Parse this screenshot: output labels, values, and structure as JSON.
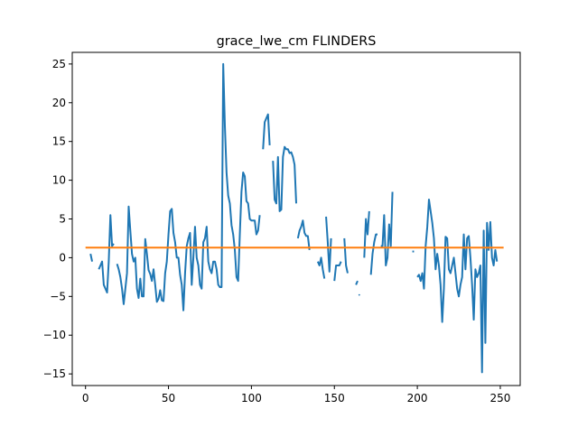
{
  "chart_data": {
    "type": "line",
    "title": "grace_lwe_cm FLINDERS",
    "xlabel": "",
    "ylabel": "",
    "xlim": [
      -8,
      262
    ],
    "ylim": [
      -16.5,
      26.5
    ],
    "x_ticks": [
      0,
      50,
      100,
      150,
      200,
      250
    ],
    "y_ticks": [
      -15,
      -10,
      -5,
      0,
      5,
      10,
      15,
      20,
      25
    ],
    "grid": false,
    "legend": "none",
    "series": [
      {
        "color": "#1f77b4",
        "segments": [
          [
            [
              3,
              0.5
            ],
            [
              4,
              -0.5
            ]
          ],
          [
            [
              8,
              -1.5
            ],
            [
              9,
              -1
            ],
            [
              10,
              -0.5
            ],
            [
              11,
              -3.5
            ],
            [
              12,
              -4
            ],
            [
              13,
              -4.5
            ],
            [
              14,
              -0.5
            ],
            [
              15,
              5.5
            ],
            [
              16,
              1.5
            ],
            [
              17,
              1.8
            ]
          ],
          [
            [
              19,
              -0.8
            ],
            [
              20,
              -1.5
            ],
            [
              21,
              -2.5
            ],
            [
              22,
              -4
            ],
            [
              23,
              -6
            ],
            [
              24,
              -4
            ],
            [
              25,
              -2
            ],
            [
              26,
              6.6
            ],
            [
              27,
              3.5
            ],
            [
              28,
              0.5
            ],
            [
              29,
              -0.5
            ],
            [
              30,
              0
            ],
            [
              31,
              -4
            ],
            [
              32,
              -5.2
            ],
            [
              33,
              -2.7
            ],
            [
              34,
              -5
            ],
            [
              35,
              -5
            ],
            [
              36,
              2.4
            ],
            [
              37,
              0.5
            ],
            [
              38,
              -1.6
            ],
            [
              39,
              -2.1
            ],
            [
              40,
              -3
            ],
            [
              41,
              -1.5
            ],
            [
              42,
              -3.5
            ],
            [
              43,
              -5.7
            ],
            [
              44,
              -5.3
            ],
            [
              45,
              -4.2
            ],
            [
              46,
              -5.5
            ],
            [
              47,
              -5.6
            ],
            [
              48,
              -2
            ],
            [
              49,
              -0.5
            ],
            [
              50,
              3
            ],
            [
              51,
              6
            ],
            [
              52,
              6.3
            ],
            [
              53,
              3.2
            ],
            [
              54,
              2
            ],
            [
              55,
              0
            ],
            [
              56,
              0
            ],
            [
              57,
              -2.2
            ],
            [
              58,
              -3.5
            ],
            [
              59,
              -6.8
            ],
            [
              60,
              -2
            ],
            [
              61,
              1.5
            ],
            [
              62,
              2.5
            ],
            [
              63,
              3.2
            ],
            [
              64,
              -3.5
            ],
            [
              65,
              0
            ],
            [
              66,
              4
            ],
            [
              67,
              0
            ],
            [
              68,
              -1
            ],
            [
              69,
              -3.5
            ],
            [
              70,
              -4
            ],
            [
              71,
              2
            ],
            [
              72,
              2.5
            ],
            [
              73,
              4
            ],
            [
              74,
              -0.5
            ],
            [
              75,
              -1.5
            ],
            [
              76,
              -2
            ],
            [
              77,
              -0.5
            ],
            [
              78,
              -0.5
            ],
            [
              79,
              -1.5
            ],
            [
              80,
              -3.5
            ],
            [
              81,
              -3.8
            ],
            [
              82,
              -3.8
            ],
            [
              83,
              25
            ],
            [
              84,
              17
            ],
            [
              85,
              11
            ],
            [
              86,
              8
            ],
            [
              87,
              7
            ],
            [
              88,
              4.2
            ],
            [
              89,
              3
            ],
            [
              90,
              1
            ],
            [
              91,
              -2.5
            ],
            [
              92,
              -3
            ],
            [
              93,
              3
            ],
            [
              94,
              8.5
            ],
            [
              95,
              11
            ],
            [
              96,
              10.5
            ],
            [
              97,
              7.3
            ],
            [
              98,
              7
            ],
            [
              99,
              5
            ],
            [
              100,
              4.8
            ],
            [
              101,
              4.8
            ],
            [
              102,
              4.8
            ],
            [
              103,
              3
            ],
            [
              104,
              3.5
            ],
            [
              105,
              5.5
            ]
          ],
          [
            [
              107,
              14
            ],
            [
              108,
              17.5
            ],
            [
              109,
              18
            ],
            [
              110,
              18.5
            ],
            [
              111,
              14.5
            ]
          ],
          [
            [
              113,
              12.5
            ],
            [
              114,
              7.5
            ],
            [
              115,
              7
            ],
            [
              116,
              13
            ],
            [
              117,
              6
            ],
            [
              118,
              6.2
            ],
            [
              119,
              13
            ],
            [
              120,
              14.3
            ],
            [
              121,
              14
            ],
            [
              122,
              14
            ],
            [
              123,
              13.5
            ],
            [
              124,
              13.6
            ],
            [
              125,
              13
            ],
            [
              126,
              12
            ],
            [
              127,
              7
            ]
          ],
          [
            [
              128,
              2.5
            ],
            [
              129,
              3.5
            ],
            [
              130,
              4
            ],
            [
              131,
              4.8
            ],
            [
              132,
              3.2
            ],
            [
              133,
              2.8
            ],
            [
              134,
              2.8
            ],
            [
              135,
              1
            ]
          ],
          [
            [
              140,
              -0.5
            ],
            [
              141,
              -1
            ],
            [
              142,
              0
            ],
            [
              143,
              -1.5
            ],
            [
              144,
              -2.7
            ]
          ],
          [
            [
              145,
              5.3
            ],
            [
              146,
              2
            ],
            [
              147,
              -1.8
            ],
            [
              148,
              2.5
            ]
          ],
          [
            [
              150,
              -3
            ],
            [
              151,
              -1
            ],
            [
              152,
              -1
            ],
            [
              153,
              -1
            ],
            [
              154,
              -0.5
            ]
          ],
          [
            [
              156,
              2.5
            ],
            [
              157,
              -1
            ],
            [
              158,
              -2
            ]
          ],
          [
            [
              163,
              -3.5
            ],
            [
              164,
              -3
            ]
          ],
          [
            [
              165,
              -4.8
            ]
          ],
          [
            [
              168,
              0
            ],
            [
              169,
              5
            ],
            [
              170,
              3
            ],
            [
              171,
              6
            ]
          ],
          [
            [
              172,
              -2.2
            ],
            [
              173,
              0.5
            ],
            [
              174,
              2
            ],
            [
              175,
              3
            ],
            [
              176,
              3
            ]
          ],
          [
            [
              178,
              1.5
            ],
            [
              179,
              1.5
            ],
            [
              180,
              5.5
            ],
            [
              181,
              -1
            ],
            [
              182,
              0
            ],
            [
              183,
              4.3
            ],
            [
              184,
              1.5
            ],
            [
              185,
              8.5
            ]
          ],
          [
            [
              197,
              0.8
            ],
            [
              198,
              0.8
            ]
          ],
          [
            [
              200,
              -2.5
            ],
            [
              201,
              -2.2
            ],
            [
              202,
              -3
            ],
            [
              203,
              -2
            ],
            [
              204,
              -4
            ],
            [
              205,
              1.5
            ],
            [
              206,
              4
            ],
            [
              207,
              7.5
            ],
            [
              208,
              6
            ],
            [
              209,
              4.5
            ],
            [
              210,
              2.5
            ],
            [
              211,
              -1.5
            ],
            [
              212,
              0.5
            ],
            [
              213,
              -1
            ],
            [
              214,
              -3.5
            ],
            [
              215,
              -8.3
            ],
            [
              216,
              -4
            ],
            [
              217,
              2.7
            ],
            [
              218,
              2.5
            ],
            [
              219,
              -1.5
            ],
            [
              220,
              -2
            ],
            [
              221,
              -1
            ],
            [
              222,
              0
            ],
            [
              223,
              -2
            ],
            [
              224,
              -4
            ],
            [
              225,
              -5
            ],
            [
              226,
              -3.5
            ],
            [
              227,
              -2.5
            ],
            [
              228,
              3
            ],
            [
              229,
              -1.5
            ],
            [
              230,
              2.5
            ],
            [
              231,
              2.8
            ],
            [
              232,
              0
            ],
            [
              233,
              -3.5
            ],
            [
              234,
              -8
            ],
            [
              235,
              -1.5
            ],
            [
              236,
              -2.5
            ],
            [
              237,
              -2
            ],
            [
              238,
              -1
            ],
            [
              239,
              -14.8
            ],
            [
              240,
              3.5
            ],
            [
              241,
              -11
            ],
            [
              242,
              4.5
            ],
            [
              243,
              1
            ],
            [
              244,
              4.6
            ],
            [
              245,
              0
            ],
            [
              246,
              -1
            ],
            [
              247,
              1
            ],
            [
              248,
              -0.5
            ]
          ]
        ]
      },
      {
        "color": "#ff7f0e",
        "segments": [
          [
            [
              0,
              1.3
            ],
            [
              252,
              1.3
            ]
          ]
        ]
      }
    ]
  }
}
